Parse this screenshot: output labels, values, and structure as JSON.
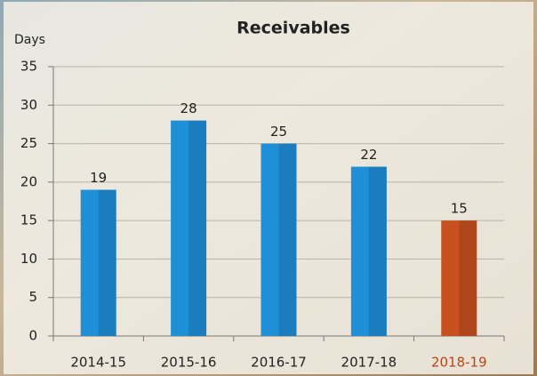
{
  "chart_data": {
    "type": "bar",
    "title": "Receivables",
    "y_label": "Days",
    "categories": [
      "2014-15",
      "2015-16",
      "2016-17",
      "2017-18",
      "2018-19"
    ],
    "values": [
      19,
      28,
      25,
      22,
      15
    ],
    "colors": [
      "#1f8fd8",
      "#1f8fd8",
      "#1f8fd8",
      "#1f8fd8",
      "#c8501e"
    ],
    "category_label_colors": [
      "#222222",
      "#222222",
      "#222222",
      "#222222",
      "#b8451a"
    ],
    "ylim": [
      0,
      35
    ],
    "yticks": [
      0,
      5,
      10,
      15,
      20,
      25,
      30,
      35
    ],
    "grid": true
  }
}
